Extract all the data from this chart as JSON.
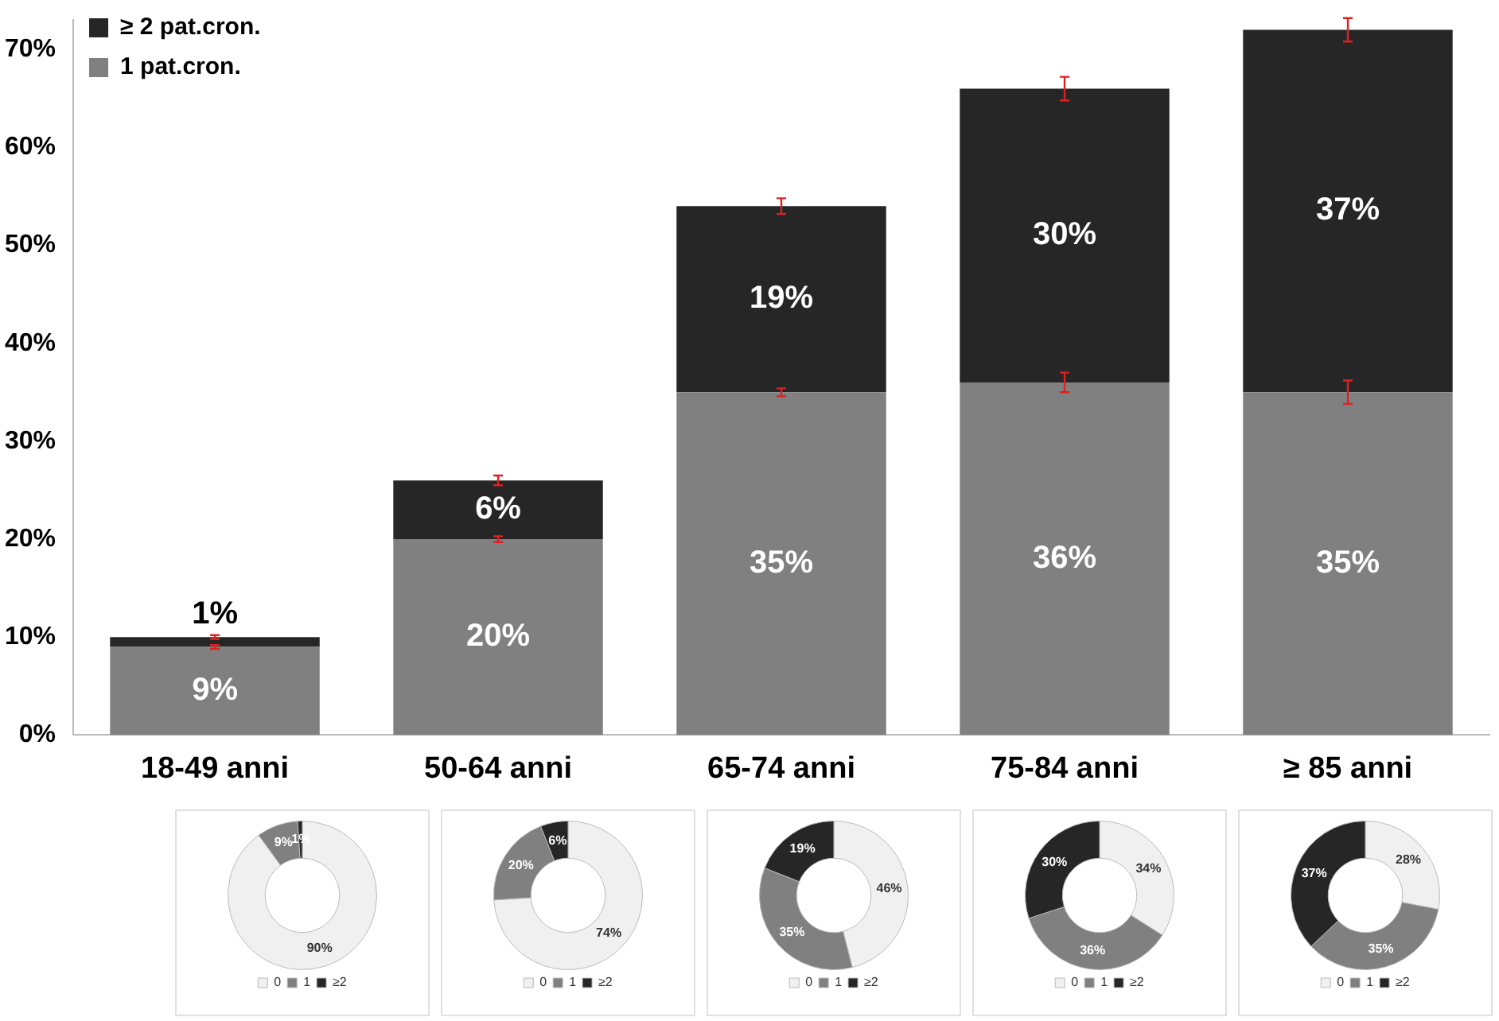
{
  "chart_data": [
    {
      "type": "bar",
      "stacked": true,
      "categories": [
        "18-49 anni",
        "50-64 anni",
        "65-74 anni",
        "75-84 anni",
        "≥ 85 anni"
      ],
      "series": [
        {
          "name": "1 pat.cron.",
          "color": "#808080",
          "values": [
            9,
            20,
            35,
            36,
            35
          ],
          "value_labels": [
            "9%",
            "20%",
            "35%",
            "36%",
            "35%"
          ],
          "errors": [
            0.2,
            0.3,
            0.4,
            1.0,
            1.2
          ]
        },
        {
          "name": "≥ 2 pat.cron.",
          "color": "#262626",
          "values": [
            1,
            6,
            19,
            30,
            37
          ],
          "value_labels": [
            "1%",
            "6%",
            "19%",
            "30%",
            "37%"
          ],
          "errors": [
            0.2,
            0.5,
            0.8,
            1.2,
            1.2
          ]
        }
      ],
      "ylim": [
        0,
        73
      ],
      "yticks": [
        {
          "value": 0,
          "label": "0%"
        },
        {
          "value": 10,
          "label": "10%"
        },
        {
          "value": 20,
          "label": "20%"
        },
        {
          "value": 30,
          "label": "30%"
        },
        {
          "value": 40,
          "label": "40%"
        },
        {
          "value": 50,
          "label": "50%"
        },
        {
          "value": 60,
          "label": "60%"
        },
        {
          "value": 70,
          "label": "70%"
        }
      ],
      "grid": false,
      "legend": "top left"
    },
    {
      "type": "donut",
      "categories": [
        "0",
        "1",
        "≥2"
      ],
      "values": [
        90,
        9,
        1
      ],
      "value_labels": [
        "90%",
        "9%",
        "1%"
      ],
      "colors": [
        "#f0f0f0",
        "#808080",
        "#262626"
      ],
      "legend": "bottom"
    },
    {
      "type": "donut",
      "categories": [
        "0",
        "1",
        "≥2"
      ],
      "values": [
        74,
        20,
        6
      ],
      "value_labels": [
        "74%",
        "20%",
        "6%"
      ],
      "colors": [
        "#f0f0f0",
        "#808080",
        "#262626"
      ],
      "legend": "bottom"
    },
    {
      "type": "donut",
      "categories": [
        "0",
        "1",
        "≥2"
      ],
      "values": [
        46,
        35,
        19
      ],
      "value_labels": [
        "46%",
        "35%",
        "19%"
      ],
      "colors": [
        "#f0f0f0",
        "#808080",
        "#262626"
      ],
      "legend": "bottom"
    },
    {
      "type": "donut",
      "categories": [
        "0",
        "1",
        "≥2"
      ],
      "values": [
        34,
        36,
        30
      ],
      "value_labels": [
        "34%",
        "36%",
        "30%"
      ],
      "colors": [
        "#f0f0f0",
        "#808080",
        "#262626"
      ],
      "legend": "bottom"
    },
    {
      "type": "donut",
      "categories": [
        "0",
        "1",
        "≥2"
      ],
      "values": [
        28,
        35,
        37
      ],
      "value_labels": [
        "28%",
        "35%",
        "37%"
      ],
      "colors": [
        "#f0f0f0",
        "#808080",
        "#262626"
      ],
      "legend": "bottom"
    }
  ]
}
